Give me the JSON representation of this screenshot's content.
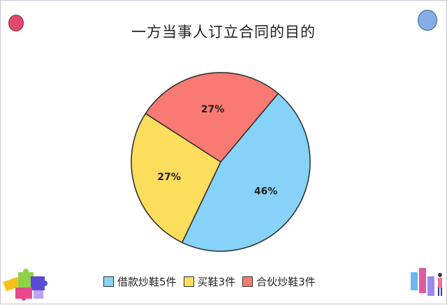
{
  "chart_data": {
    "type": "pie",
    "title": "一方当事人订立合同的目的",
    "slices": [
      {
        "name": "借款炒鞋5件",
        "value": 46,
        "label": "46%",
        "color": "#87d2f8"
      },
      {
        "name": "买鞋3件",
        "value": 27,
        "label": "27%",
        "color": "#fddd5c"
      },
      {
        "name": "合伙炒鞋3件",
        "value": 27,
        "label": "27%",
        "color": "#f87a72"
      }
    ],
    "legend_position": "bottom"
  },
  "decor": {
    "dot_left_color": "#e24a6d",
    "dot_right_color": "#86aee6"
  }
}
